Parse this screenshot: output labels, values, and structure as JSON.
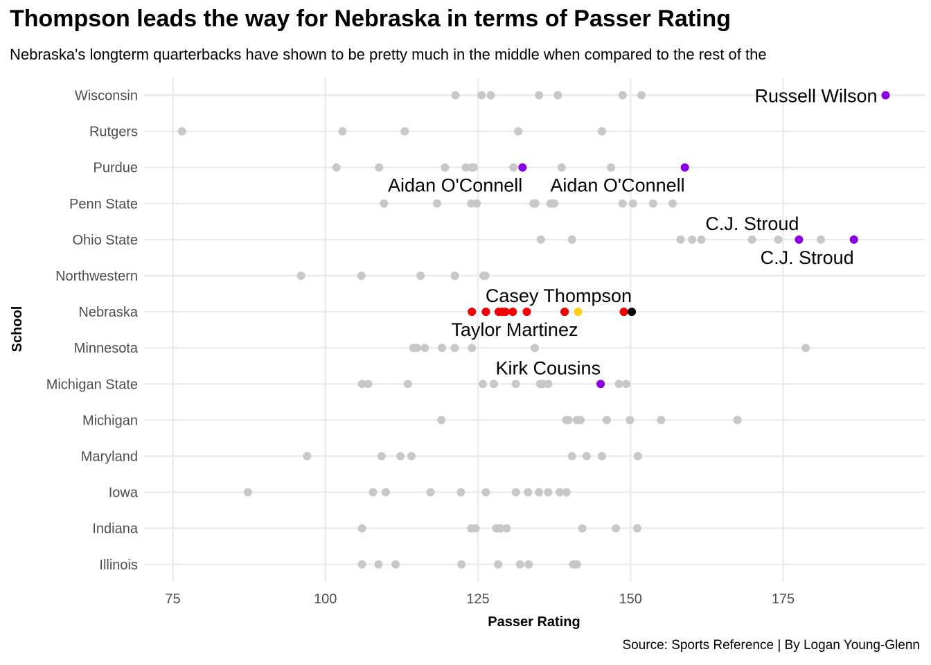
{
  "chart_data": {
    "type": "scatter",
    "title": "Thompson leads the way for Nebraska in terms of Passer Rating",
    "subtitle": "Nebraska's longterm quarterbacks have shown to be pretty much in the middle when compared to the rest of the",
    "caption": "Source: Sports Reference | By Logan Young-Glenn",
    "xlabel": "Passer Rating",
    "ylabel": "School",
    "xlim": [
      69,
      195
    ],
    "xticks": [
      75,
      100,
      125,
      150,
      175
    ],
    "grid": true,
    "colors": {
      "other": "#c8c8c8",
      "nebraska": "#f00000",
      "highlight": "#8a00e6",
      "thompson": "#000000",
      "martinez": "#ffcc1a",
      "grid": "#ebebeb"
    },
    "categories": [
      "Wisconsin",
      "Rutgers",
      "Purdue",
      "Penn State",
      "Ohio State",
      "Northwestern",
      "Nebraska",
      "Minnesota",
      "Michigan State",
      "Michigan",
      "Maryland",
      "Iowa",
      "Indiana",
      "Illinois"
    ],
    "series": [
      {
        "group": "other",
        "points": [
          {
            "school": "Wisconsin",
            "values": [
              121.3,
              125.6,
              127.1,
              135.0,
              138.1,
              148.7,
              151.8
            ]
          },
          {
            "school": "Rutgers",
            "values": [
              76.5,
              102.8,
              113.0,
              131.6,
              145.3
            ]
          },
          {
            "school": "Purdue",
            "values": [
              101.8,
              108.8,
              119.6,
              123.0,
              124.0,
              124.3,
              124.0,
              130.8,
              138.7,
              146.8
            ]
          },
          {
            "school": "Penn State",
            "values": [
              109.6,
              118.3,
              123.9,
              124.8,
              134.1,
              134.4,
              136.9,
              137.5,
              148.7,
              150.4,
              153.7,
              156.9
            ]
          },
          {
            "school": "Ohio State",
            "values": [
              135.3,
              140.4,
              158.2,
              160.1,
              161.6,
              169.9,
              174.2,
              181.2
            ]
          },
          {
            "school": "Northwestern",
            "values": [
              96.0,
              105.9,
              115.6,
              121.2,
              121.2,
              126.2,
              125.9
            ]
          },
          {
            "school": "Minnesota",
            "values": [
              114.4,
              115.0,
              116.3,
              119.1,
              121.2,
              124.0,
              134.3,
              178.7
            ]
          },
          {
            "school": "Michigan State",
            "values": [
              106.0,
              107.0,
              113.5,
              125.8,
              127.6,
              131.2,
              135.2,
              135.6,
              136.5,
              148.1,
              149.3
            ]
          },
          {
            "school": "Michigan",
            "values": [
              119.0,
              139.5,
              139.8,
              139.8,
              141.2,
              141.8,
              146.1,
              149.9,
              155.0,
              167.5
            ]
          },
          {
            "school": "Maryland",
            "values": [
              97.0,
              109.2,
              112.3,
              114.1,
              140.4,
              142.8,
              145.3,
              151.2
            ]
          },
          {
            "school": "Iowa",
            "values": [
              87.3,
              107.8,
              109.9,
              117.2,
              122.2,
              126.3,
              131.2,
              133.2,
              135.0,
              136.5,
              138.4,
              139.5
            ]
          },
          {
            "school": "Indiana",
            "values": [
              106.0,
              123.9,
              124.6,
              128.0,
              128.7,
              128.6,
              129.7,
              142.1,
              147.6,
              151.1
            ]
          },
          {
            "school": "Illinois",
            "values": [
              106.0,
              108.7,
              111.5,
              122.3,
              128.3,
              131.9,
              133.3,
              140.6,
              141.0,
              141.2
            ]
          }
        ]
      },
      {
        "group": "nebraska",
        "points": [
          {
            "school": "Nebraska",
            "values": [
              124.0,
              126.3,
              128.4,
              129.0,
              129.5,
              130.7,
              133.0,
              139.2,
              148.9
            ]
          }
        ]
      },
      {
        "group": "highlight",
        "points": [
          {
            "school": "Wisconsin",
            "values": [
              191.8
            ]
          },
          {
            "school": "Purdue",
            "values": [
              132.3,
              158.9
            ]
          },
          {
            "school": "Ohio State",
            "values": [
              177.6,
              186.6
            ]
          },
          {
            "school": "Michigan State",
            "values": [
              145.1
            ]
          }
        ]
      },
      {
        "group": "thompson",
        "points": [
          {
            "school": "Nebraska",
            "values": [
              150.2
            ]
          }
        ]
      },
      {
        "group": "martinez",
        "points": [
          {
            "school": "Nebraska",
            "values": [
              141.4
            ]
          }
        ]
      }
    ],
    "annotations": [
      {
        "text": "Russell Wilson",
        "school": "Wisconsin",
        "x": 191.8,
        "anchor": "end",
        "placement": "left"
      },
      {
        "text": "Aidan O'Connell",
        "school": "Purdue",
        "x": 132.3,
        "anchor": "end",
        "placement": "below"
      },
      {
        "text": "Aidan O'Connell",
        "school": "Purdue",
        "x": 158.9,
        "anchor": "end",
        "placement": "below"
      },
      {
        "text": "C.J. Stroud",
        "school": "Ohio State",
        "x": 177.6,
        "anchor": "end",
        "placement": "above"
      },
      {
        "text": "C.J. Stroud",
        "school": "Ohio State",
        "x": 186.6,
        "anchor": "end",
        "placement": "below"
      },
      {
        "text": "Casey Thompson",
        "school": "Nebraska",
        "x": 150.2,
        "anchor": "end",
        "placement": "above"
      },
      {
        "text": "Taylor Martinez",
        "school": "Nebraska",
        "x": 141.4,
        "anchor": "end",
        "placement": "below"
      },
      {
        "text": "Kirk Cousins",
        "school": "Michigan State",
        "x": 145.1,
        "anchor": "end",
        "placement": "above"
      }
    ]
  }
}
